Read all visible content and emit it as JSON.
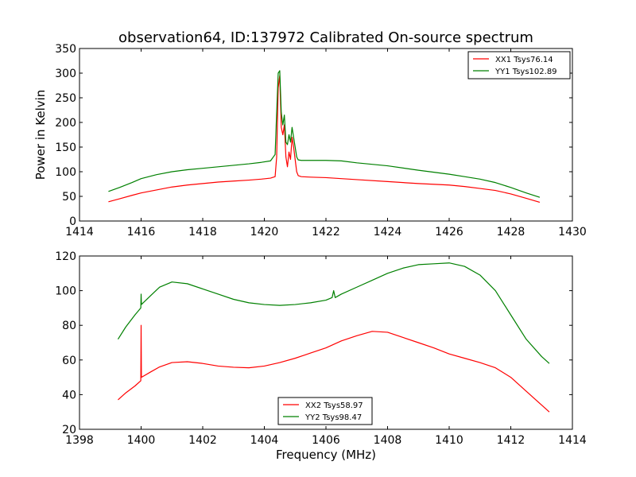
{
  "figure_title": "observation64, ID:137972 Calibrated On-source spectrum",
  "colors": {
    "red": "#ff0000",
    "green": "#008000",
    "axes": "#000000",
    "background": "#ffffff"
  },
  "chart_data": [
    {
      "type": "line",
      "title": "observation64, ID:137972 Calibrated On-source spectrum",
      "xlabel": "",
      "ylabel": "Power in Kelvin",
      "xlim": [
        1414,
        1430
      ],
      "ylim": [
        0,
        350
      ],
      "xticks": [
        1414,
        1416,
        1418,
        1420,
        1422,
        1424,
        1426,
        1428,
        1430
      ],
      "yticks": [
        0,
        50,
        100,
        150,
        200,
        250,
        300,
        350
      ],
      "grid": false,
      "legend_position": "top-right",
      "series": [
        {
          "name": "XX1 Tsys76.14",
          "color": "#ff0000",
          "x": [
            1414.94,
            1415.3,
            1415.7,
            1416.0,
            1416.5,
            1417.0,
            1417.5,
            1418.0,
            1418.5,
            1419.0,
            1419.5,
            1419.9,
            1420.2,
            1420.35,
            1420.4,
            1420.45,
            1420.5,
            1420.55,
            1420.6,
            1420.65,
            1420.7,
            1420.75,
            1420.8,
            1420.85,
            1420.9,
            1420.95,
            1421.0,
            1421.05,
            1421.1,
            1421.2,
            1421.5,
            1422.0,
            1422.5,
            1423.0,
            1424.0,
            1425.0,
            1426.0,
            1426.5,
            1427.0,
            1427.5,
            1428.0,
            1428.5,
            1428.94
          ],
          "y": [
            39,
            45,
            52,
            57,
            63,
            69,
            73,
            76,
            79,
            81,
            83,
            85,
            87,
            90,
            130,
            270,
            295,
            190,
            175,
            195,
            130,
            110,
            140,
            125,
            170,
            150,
            125,
            100,
            92,
            90,
            89,
            88,
            86,
            84,
            80,
            76,
            73,
            70,
            66,
            62,
            55,
            46,
            38
          ]
        },
        {
          "name": "YY1 Tsys102.89",
          "color": "#008000",
          "x": [
            1414.94,
            1415.3,
            1415.7,
            1416.0,
            1416.5,
            1417.0,
            1417.5,
            1418.0,
            1418.5,
            1419.0,
            1419.5,
            1419.9,
            1420.2,
            1420.35,
            1420.4,
            1420.45,
            1420.5,
            1420.55,
            1420.6,
            1420.65,
            1420.7,
            1420.75,
            1420.8,
            1420.85,
            1420.9,
            1420.95,
            1421.0,
            1421.05,
            1421.1,
            1421.2,
            1421.5,
            1422.0,
            1422.5,
            1423.0,
            1424.0,
            1425.0,
            1426.0,
            1426.5,
            1427.0,
            1427.5,
            1428.0,
            1428.5,
            1428.94
          ],
          "y": [
            60,
            68,
            78,
            86,
            94,
            100,
            104,
            107,
            110,
            113,
            116,
            119,
            122,
            135,
            220,
            300,
            305,
            220,
            195,
            215,
            160,
            155,
            175,
            160,
            190,
            170,
            150,
            130,
            124,
            123,
            123,
            123,
            122,
            118,
            112,
            103,
            95,
            90,
            85,
            78,
            68,
            57,
            48
          ]
        }
      ]
    },
    {
      "type": "line",
      "title": "",
      "xlabel": "Frequency (MHz)",
      "ylabel": "",
      "xlim": [
        1398,
        1414
      ],
      "ylim": [
        20,
        120
      ],
      "xticks": [
        1398,
        1400,
        1402,
        1404,
        1406,
        1408,
        1410,
        1412,
        1414
      ],
      "yticks": [
        20,
        40,
        60,
        80,
        100,
        120
      ],
      "grid": false,
      "legend_position": "bottom-center",
      "series": [
        {
          "name": "XX2 Tsys58.97",
          "color": "#ff0000",
          "x": [
            1399.25,
            1399.5,
            1399.8,
            1399.99,
            1400.0,
            1400.01,
            1400.3,
            1400.6,
            1401.0,
            1401.5,
            1402.0,
            1402.5,
            1403.0,
            1403.5,
            1404.0,
            1404.5,
            1405.0,
            1405.5,
            1406.0,
            1406.5,
            1407.0,
            1407.5,
            1408.0,
            1408.5,
            1409.0,
            1409.5,
            1410.0,
            1410.5,
            1411.0,
            1411.5,
            1412.0,
            1412.5,
            1413.0,
            1413.25
          ],
          "y": [
            37,
            41,
            45,
            48,
            80,
            50,
            53,
            56,
            58.5,
            59,
            58,
            56.5,
            55.8,
            55.5,
            56.5,
            58.5,
            61,
            64,
            67,
            71,
            74,
            76.5,
            76,
            73,
            70,
            67,
            63.5,
            61,
            58.5,
            55.5,
            50,
            42,
            34,
            30
          ]
        },
        {
          "name": "YY2 Tsys98.47",
          "color": "#008000",
          "x": [
            1399.25,
            1399.5,
            1399.8,
            1399.99,
            1400.0,
            1400.01,
            1400.3,
            1400.6,
            1401.0,
            1401.5,
            1402.0,
            1402.5,
            1403.0,
            1403.5,
            1404.0,
            1404.5,
            1405.0,
            1405.5,
            1406.0,
            1406.2,
            1406.25,
            1406.3,
            1406.5,
            1407.0,
            1407.5,
            1408.0,
            1408.5,
            1409.0,
            1409.5,
            1410.0,
            1410.5,
            1411.0,
            1411.5,
            1412.0,
            1412.5,
            1413.0,
            1413.25
          ],
          "y": [
            72,
            79,
            86,
            90,
            98,
            92,
            97,
            102,
            105,
            104,
            101,
            98,
            95,
            93,
            92,
            91.5,
            92,
            93,
            94.5,
            96,
            100,
            96,
            98,
            102,
            106,
            110,
            113,
            115,
            115.5,
            116,
            114,
            109,
            100,
            86,
            72,
            62,
            58
          ]
        }
      ]
    }
  ]
}
